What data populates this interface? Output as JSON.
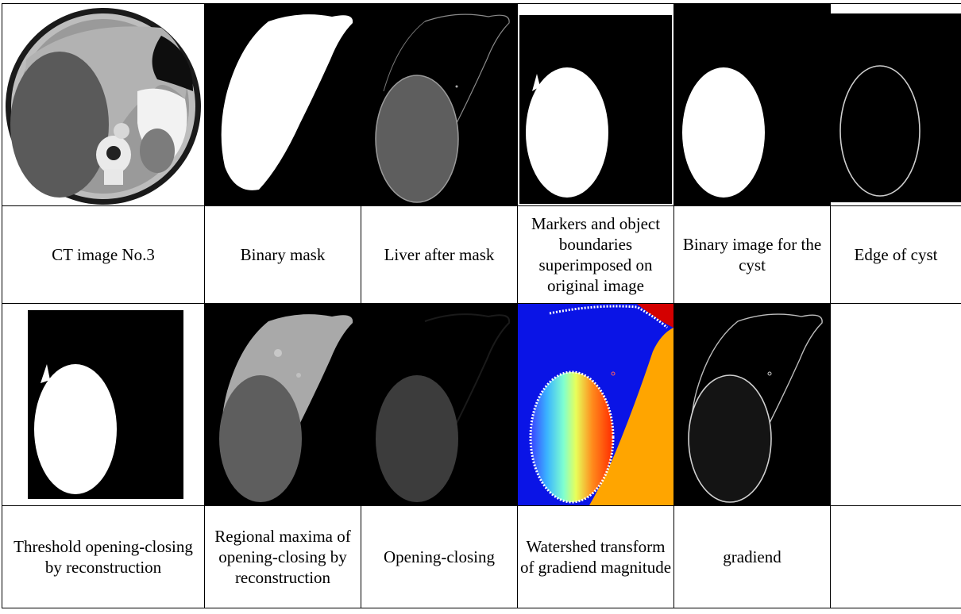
{
  "figure": {
    "row1_captions": [
      "CT image No.3",
      "Binary mask",
      "Liver after mask",
      "Markers and object boundaries superimposed on original image",
      "Binary image for the cyst",
      "Edge of cyst"
    ],
    "row2_captions": [
      "Threshold opening-closing by reconstruction",
      "Regional maxima of opening-closing by reconstruction",
      "Opening-closing",
      "Watershed transform of gradiend magnitude",
      "gradiend",
      ""
    ],
    "colors": {
      "background": "#000000",
      "mask": "#ffffff",
      "liver_gray": "#a9a9a9",
      "cyst_gray": "#5e5e5e",
      "watershed_blue": "#0a14e6",
      "watershed_orange": "#ffa500",
      "watershed_red": "#d40000"
    }
  }
}
